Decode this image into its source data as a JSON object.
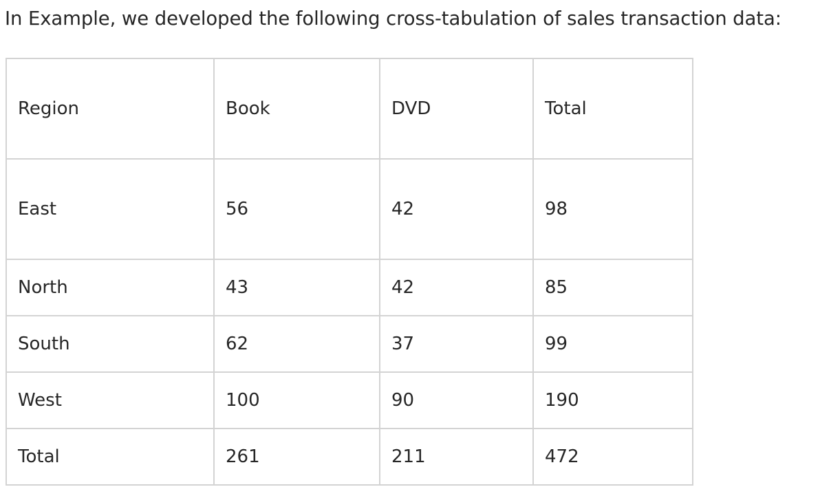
{
  "intro_text": "In Example, we developed the following cross-tabulation of sales transaction data:",
  "table": {
    "headers": [
      "Region",
      "Book",
      "DVD",
      "Total"
    ],
    "rows": [
      [
        "East",
        "56",
        "42",
        "98"
      ],
      [
        "North",
        "43",
        "42",
        "85"
      ],
      [
        "South",
        "62",
        "37",
        "99"
      ],
      [
        "West",
        "100",
        "90",
        "190"
      ],
      [
        "Total",
        "261",
        "211",
        "472"
      ]
    ]
  }
}
